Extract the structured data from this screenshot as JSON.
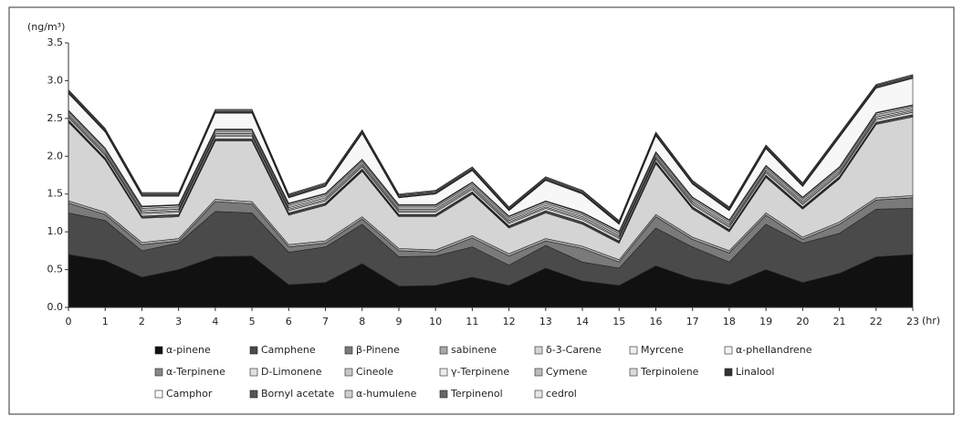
{
  "chart_data": {
    "type": "stacked-area",
    "y_unit_label": "(ng/m³)",
    "x_unit_label": "(hr)",
    "x": [
      0,
      1,
      2,
      3,
      4,
      5,
      6,
      7,
      8,
      9,
      10,
      11,
      12,
      13,
      14,
      15,
      16,
      17,
      18,
      19,
      20,
      21,
      22,
      23
    ],
    "xlim": [
      0,
      23
    ],
    "xticks": [
      0,
      1,
      2,
      3,
      4,
      5,
      6,
      7,
      8,
      9,
      10,
      11,
      12,
      13,
      14,
      15,
      16,
      17,
      18,
      19,
      20,
      21,
      22,
      23
    ],
    "ylim": [
      0,
      3.5
    ],
    "yticks": [
      {
        "value": 0,
        "label": "0.0"
      },
      {
        "value": 0.5,
        "label": "0.5"
      },
      {
        "value": 1,
        "label": "1.0"
      },
      {
        "value": 1.5,
        "label": "1.5"
      },
      {
        "value": 2,
        "label": "2.0"
      },
      {
        "value": 2.5,
        "label": "2.5"
      },
      {
        "value": 3,
        "label": "3.0"
      },
      {
        "value": 3.5,
        "label": "3.5"
      }
    ],
    "series": [
      {
        "name": "α-pinene",
        "color": "#111111",
        "values": [
          0.7,
          0.62,
          0.4,
          0.5,
          0.67,
          0.68,
          0.3,
          0.33,
          0.58,
          0.28,
          0.29,
          0.4,
          0.29,
          0.52,
          0.35,
          0.29,
          0.55,
          0.38,
          0.3,
          0.5,
          0.33,
          0.45,
          0.67,
          0.7
        ]
      },
      {
        "name": "Camphene",
        "color": "#4a4a4a",
        "values": [
          0.55,
          0.53,
          0.35,
          0.35,
          0.6,
          0.57,
          0.43,
          0.47,
          0.52,
          0.39,
          0.39,
          0.4,
          0.27,
          0.3,
          0.25,
          0.23,
          0.5,
          0.42,
          0.3,
          0.6,
          0.52,
          0.53,
          0.63,
          0.61
        ]
      },
      {
        "name": "β-Pinene",
        "color": "#7a7a7a",
        "values": [
          0.13,
          0.08,
          0.08,
          0.03,
          0.13,
          0.12,
          0.07,
          0.05,
          0.07,
          0.08,
          0.05,
          0.12,
          0.12,
          0.06,
          0.18,
          0.08,
          0.15,
          0.1,
          0.12,
          0.12,
          0.05,
          0.12,
          0.12,
          0.14
        ]
      },
      {
        "name": "sabinene",
        "color": "#a8a8a8",
        "values": [
          0.03,
          0.03,
          0.03,
          0.03,
          0.03,
          0.03,
          0.03,
          0.03,
          0.03,
          0.03,
          0.03,
          0.03,
          0.03,
          0.03,
          0.03,
          0.03,
          0.03,
          0.03,
          0.03,
          0.03,
          0.03,
          0.03,
          0.03,
          0.03
        ]
      },
      {
        "name": "δ-3-Carene",
        "color": "#d4d4d4",
        "values": [
          1.04,
          0.69,
          0.32,
          0.29,
          0.77,
          0.8,
          0.39,
          0.47,
          0.6,
          0.42,
          0.44,
          0.55,
          0.34,
          0.34,
          0.29,
          0.22,
          0.67,
          0.37,
          0.25,
          0.47,
          0.37,
          0.57,
          0.97,
          1.04
        ]
      },
      {
        "name": "Myrcene",
        "color": "#eeeeee",
        "values": [
          0.01,
          0.01,
          0.01,
          0.01,
          0.01,
          0.01,
          0.01,
          0.01,
          0.01,
          0.01,
          0.01,
          0.01,
          0.01,
          0.01,
          0.01,
          0.01,
          0.01,
          0.01,
          0.01,
          0.01,
          0.01,
          0.01,
          0.01,
          0.01
        ]
      },
      {
        "name": "α-phellandrene",
        "color": "#f4f4f4",
        "values": [
          0.01,
          0.01,
          0.01,
          0.01,
          0.01,
          0.01,
          0.01,
          0.01,
          0.01,
          0.01,
          0.01,
          0.01,
          0.01,
          0.01,
          0.01,
          0.01,
          0.01,
          0.01,
          0.01,
          0.01,
          0.01,
          0.01,
          0.01,
          0.01
        ]
      },
      {
        "name": "α-Terpinene",
        "color": "#888888",
        "values": [
          0.01,
          0.01,
          0.01,
          0.01,
          0.01,
          0.01,
          0.01,
          0.01,
          0.01,
          0.01,
          0.01,
          0.01,
          0.01,
          0.01,
          0.01,
          0.01,
          0.01,
          0.01,
          0.01,
          0.01,
          0.01,
          0.01,
          0.01,
          0.01
        ]
      },
      {
        "name": "D-Limonene",
        "color": "#e0e0e0",
        "values": [
          0.03,
          0.03,
          0.03,
          0.03,
          0.03,
          0.03,
          0.03,
          0.03,
          0.03,
          0.03,
          0.03,
          0.03,
          0.03,
          0.03,
          0.03,
          0.03,
          0.03,
          0.03,
          0.03,
          0.03,
          0.03,
          0.03,
          0.03,
          0.03
        ]
      },
      {
        "name": "Cineole",
        "color": "#c8c8c8",
        "values": [
          0.02,
          0.02,
          0.02,
          0.02,
          0.02,
          0.02,
          0.02,
          0.02,
          0.02,
          0.02,
          0.02,
          0.02,
          0.02,
          0.02,
          0.02,
          0.02,
          0.02,
          0.02,
          0.02,
          0.02,
          0.02,
          0.02,
          0.02,
          0.02
        ]
      },
      {
        "name": "γ-Terpinene",
        "color": "#ebebeb",
        "values": [
          0.02,
          0.02,
          0.02,
          0.02,
          0.02,
          0.02,
          0.02,
          0.02,
          0.02,
          0.02,
          0.02,
          0.02,
          0.02,
          0.02,
          0.02,
          0.02,
          0.02,
          0.02,
          0.02,
          0.02,
          0.02,
          0.02,
          0.02,
          0.02
        ]
      },
      {
        "name": "Cymene",
        "color": "#bdbdbd",
        "values": [
          0.03,
          0.03,
          0.03,
          0.03,
          0.03,
          0.03,
          0.03,
          0.03,
          0.03,
          0.03,
          0.03,
          0.03,
          0.03,
          0.03,
          0.03,
          0.03,
          0.03,
          0.03,
          0.03,
          0.03,
          0.03,
          0.03,
          0.03,
          0.03
        ]
      },
      {
        "name": "Terpinolene",
        "color": "#dcdcdc",
        "values": [
          0.02,
          0.02,
          0.02,
          0.02,
          0.02,
          0.02,
          0.02,
          0.02,
          0.02,
          0.02,
          0.02,
          0.02,
          0.02,
          0.02,
          0.02,
          0.02,
          0.02,
          0.02,
          0.02,
          0.02,
          0.02,
          0.02,
          0.02,
          0.02
        ]
      },
      {
        "name": "Linalool",
        "color": "#333333",
        "values": [
          0.01,
          0.01,
          0.01,
          0.01,
          0.01,
          0.01,
          0.01,
          0.01,
          0.01,
          0.01,
          0.01,
          0.01,
          0.01,
          0.01,
          0.01,
          0.01,
          0.01,
          0.01,
          0.01,
          0.01,
          0.01,
          0.01,
          0.01,
          0.01
        ]
      },
      {
        "name": "Camphor",
        "color": "#f7f7f7",
        "values": [
          0.22,
          0.21,
          0.13,
          0.11,
          0.21,
          0.21,
          0.07,
          0.09,
          0.34,
          0.09,
          0.14,
          0.15,
          0.07,
          0.27,
          0.24,
          0.09,
          0.21,
          0.17,
          0.12,
          0.22,
          0.14,
          0.39,
          0.32,
          0.35
        ]
      },
      {
        "name": "Bornyl acetate",
        "color": "#555555",
        "values": [
          0.01,
          0.01,
          0.01,
          0.01,
          0.01,
          0.01,
          0.01,
          0.01,
          0.01,
          0.01,
          0.01,
          0.01,
          0.01,
          0.01,
          0.01,
          0.01,
          0.01,
          0.01,
          0.01,
          0.01,
          0.01,
          0.01,
          0.01,
          0.01
        ]
      },
      {
        "name": "α-humulene",
        "color": "#cfcfcf",
        "values": [
          0.01,
          0.01,
          0.01,
          0.01,
          0.01,
          0.01,
          0.01,
          0.01,
          0.01,
          0.01,
          0.01,
          0.01,
          0.01,
          0.01,
          0.01,
          0.01,
          0.01,
          0.01,
          0.01,
          0.01,
          0.01,
          0.01,
          0.01,
          0.01
        ]
      },
      {
        "name": "Terpinenol",
        "color": "#666666",
        "values": [
          0.02,
          0.02,
          0.02,
          0.02,
          0.02,
          0.02,
          0.02,
          0.02,
          0.02,
          0.02,
          0.02,
          0.02,
          0.02,
          0.02,
          0.02,
          0.02,
          0.02,
          0.02,
          0.02,
          0.02,
          0.02,
          0.02,
          0.02,
          0.02
        ]
      },
      {
        "name": "cedrol",
        "color": "#e6e6e6",
        "values": [
          0.01,
          0.01,
          0.01,
          0.01,
          0.01,
          0.01,
          0.01,
          0.01,
          0.01,
          0.01,
          0.01,
          0.01,
          0.01,
          0.01,
          0.01,
          0.01,
          0.01,
          0.01,
          0.01,
          0.01,
          0.01,
          0.01,
          0.01,
          0.01
        ]
      }
    ],
    "legend_columns": 7
  }
}
